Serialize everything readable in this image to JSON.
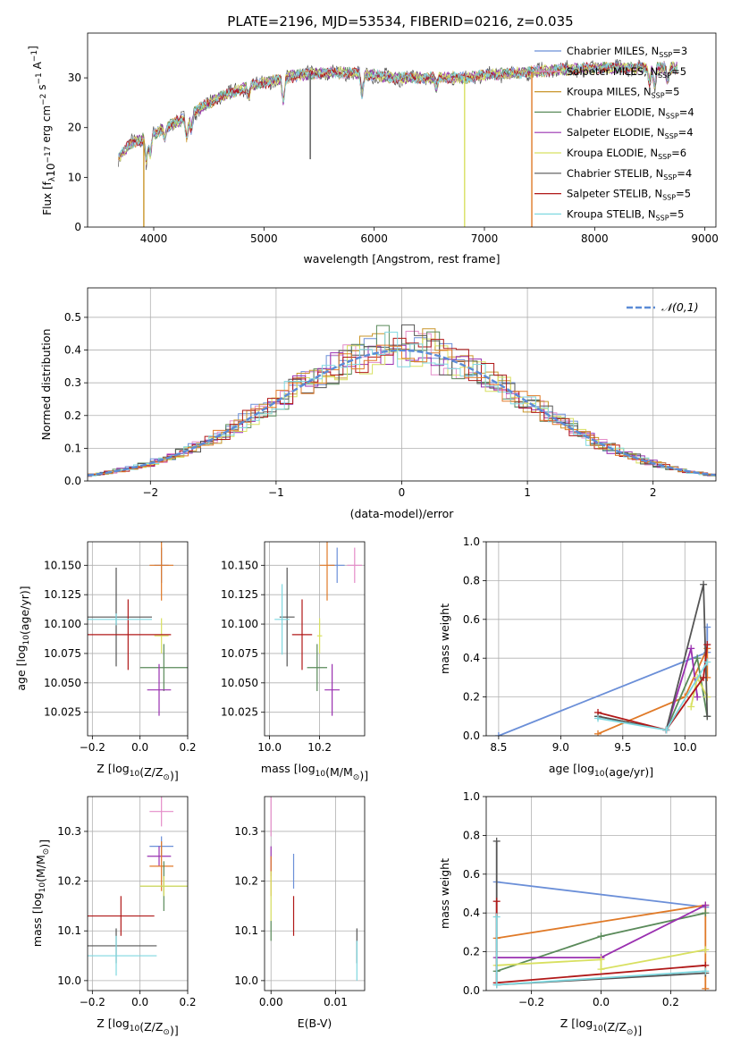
{
  "title": "PLATE=2196, MJD=53534, FIBERID=0216, z=0.035",
  "colors": {
    "Chabrier MILES": "#6b8fd8",
    "Salpeter MILES": "#e48cc8",
    "Kroupa MILES": "#c9962a",
    "Chabrier ELODIE": "#5a8a5a",
    "Salpeter ELODIE": "#9a30b0",
    "Kroupa ELODIE": "#d8e060",
    "Chabrier STELIB": "#555555",
    "Salpeter STELIB": "#b01818",
    "Kroupa STELIB": "#7fd8e0",
    "orange": "#e07a28",
    "normal": "#5b8bd6"
  },
  "chart_data": [
    {
      "type": "line",
      "id": "spectrum",
      "xlabel": "wavelength [Angstrom, rest frame]",
      "ylabel": "Flux [f",
      "ylabel_parts": [
        "λ",
        "10",
        "−17",
        " erg cm",
        "−2",
        " s",
        "−1",
        " A",
        "−1",
        "]"
      ],
      "xlim": [
        3400,
        9100
      ],
      "ylim": [
        0,
        39
      ],
      "xticks": [
        4000,
        5000,
        6000,
        7000,
        8000,
        9000
      ],
      "yticks": [
        0,
        10,
        20,
        30
      ],
      "wavelength_range": [
        3680,
        8750
      ],
      "legend": [
        {
          "name": "Chabrier MILES",
          "sub": "SSP",
          "n": "=3"
        },
        {
          "name": "Salpeter MILES",
          "sub": "SSP",
          "n": "=5"
        },
        {
          "name": "Kroupa MILES",
          "sub": "SSP",
          "n": "=5"
        },
        {
          "name": "Chabrier ELODIE",
          "sub": "SSP",
          "n": "=4"
        },
        {
          "name": "Salpeter ELODIE",
          "sub": "SSP",
          "n": "=4"
        },
        {
          "name": "Kroupa ELODIE",
          "sub": "SSP",
          "n": "=6"
        },
        {
          "name": "Chabrier STELIB",
          "sub": "SSP",
          "n": "=4"
        },
        {
          "name": "Salpeter STELIB",
          "sub": "SSP",
          "n": "=5"
        },
        {
          "name": "Kroupa STELIB",
          "sub": "SSP",
          "n": "=5"
        }
      ],
      "continuum": [
        [
          3680,
          14
        ],
        [
          3800,
          17
        ],
        [
          3950,
          18
        ],
        [
          4100,
          20
        ],
        [
          4300,
          22
        ],
        [
          4500,
          25
        ],
        [
          4700,
          27
        ],
        [
          4900,
          28.5
        ],
        [
          5100,
          29.5
        ],
        [
          5300,
          30.5
        ],
        [
          5500,
          31
        ],
        [
          5800,
          31
        ],
        [
          6000,
          30.5
        ],
        [
          6200,
          30
        ],
        [
          6500,
          30
        ],
        [
          6800,
          30
        ],
        [
          7000,
          30.5
        ],
        [
          7300,
          31
        ],
        [
          7600,
          31.5
        ],
        [
          8000,
          32
        ],
        [
          8300,
          32
        ],
        [
          8750,
          32
        ]
      ],
      "absorption_lines": [
        [
          3933,
          -5
        ],
        [
          3968,
          -4
        ],
        [
          4101,
          -2
        ],
        [
          4300,
          -4
        ],
        [
          4340,
          -3
        ],
        [
          4861,
          -2
        ],
        [
          5175,
          -5
        ],
        [
          5890,
          -5
        ],
        [
          6563,
          -2
        ],
        [
          8498,
          -3
        ],
        [
          8542,
          -4
        ],
        [
          8662,
          -3
        ]
      ],
      "dropouts": [
        [
          3910,
          0
        ],
        [
          5420,
          14
        ],
        [
          6820,
          0
        ],
        [
          7430,
          0
        ]
      ]
    },
    {
      "type": "histogram",
      "id": "residuals",
      "xlabel": "(data-model)/error",
      "ylabel": "Normed distribution",
      "xlim": [
        -2.5,
        2.5
      ],
      "ylim": [
        0,
        0.59
      ],
      "xticks": [
        -2,
        -1,
        0,
        1,
        2
      ],
      "yticks": [
        0.0,
        0.1,
        0.2,
        0.3,
        0.4,
        0.5
      ],
      "bin_width": 0.1,
      "legend": "𝒩(0,1)",
      "normal_mean": 0,
      "normal_sigma": 1
    },
    {
      "type": "scatter",
      "id": "age-vs-Z",
      "xlabel": "Z [log",
      "xlabel_parts": [
        "10",
        "(Z/Z",
        "⊙",
        ")]"
      ],
      "ylabel": "age  [log",
      "ylabel_parts": [
        "10",
        "(age/yr)]"
      ],
      "xlim": [
        -0.22,
        0.2
      ],
      "ylim": [
        10.005,
        10.17
      ],
      "xticks": [
        -0.2,
        0.0,
        0.2
      ],
      "yticks": [
        10.025,
        10.05,
        10.075,
        10.1,
        10.125,
        10.15
      ],
      "points": [
        {
          "c": "Chabrier MILES",
          "x": 0.09,
          "y": 10.15,
          "xe": 0.03,
          "ye": 0.015
        },
        {
          "c": "orange",
          "x": 0.09,
          "y": 10.15,
          "xe": 0.05,
          "ye": 0.03
        },
        {
          "c": "Kroupa ELODIE",
          "x": 0.09,
          "y": 10.09,
          "xe": 0.03,
          "ye": 0.015
        },
        {
          "c": "Chabrier ELODIE",
          "x": 0.1,
          "y": 10.063,
          "xe": 0.1,
          "ye": 0.02
        },
        {
          "c": "Salpeter ELODIE",
          "x": 0.08,
          "y": 10.044,
          "xe": 0.05,
          "ye": 0.022
        },
        {
          "c": "Chabrier STELIB",
          "x": -0.1,
          "y": 10.106,
          "xe": 0.15,
          "ye": 0.042
        },
        {
          "c": "Salpeter STELIB",
          "x": -0.05,
          "y": 10.091,
          "xe": 0.18,
          "ye": 0.03
        },
        {
          "c": "Kroupa STELIB",
          "x": -0.1,
          "y": 10.104,
          "xe": 0.15,
          "ye": 0.005
        }
      ]
    },
    {
      "type": "scatter",
      "id": "age-vs-mass",
      "xlabel": "mass [log",
      "xlabel_parts": [
        "10",
        "(M/M",
        "⊙",
        ")]"
      ],
      "xlim": [
        9.98,
        10.38
      ],
      "ylim": [
        10.005,
        10.17
      ],
      "xticks": [
        10.0,
        10.2
      ],
      "yticks": [
        10.025,
        10.05,
        10.075,
        10.1,
        10.125,
        10.15
      ],
      "points": [
        {
          "c": "Chabrier MILES",
          "x": 10.27,
          "y": 10.15,
          "xe": 0.03,
          "ye": 0.015
        },
        {
          "c": "Salpeter MILES",
          "x": 10.34,
          "y": 10.15,
          "xe": 0.03,
          "ye": 0.015
        },
        {
          "c": "orange",
          "x": 10.23,
          "y": 10.15,
          "xe": 0.03,
          "ye": 0.03
        },
        {
          "c": "Kroupa ELODIE",
          "x": 10.2,
          "y": 10.09,
          "xe": 0.01,
          "ye": 0.015
        },
        {
          "c": "Chabrier ELODIE",
          "x": 10.19,
          "y": 10.063,
          "xe": 0.04,
          "ye": 0.02
        },
        {
          "c": "Salpeter ELODIE",
          "x": 10.25,
          "y": 10.044,
          "xe": 0.03,
          "ye": 0.022
        },
        {
          "c": "Chabrier STELIB",
          "x": 10.07,
          "y": 10.106,
          "xe": 0.03,
          "ye": 0.042
        },
        {
          "c": "Salpeter STELIB",
          "x": 10.13,
          "y": 10.091,
          "xe": 0.04,
          "ye": 0.03
        },
        {
          "c": "Kroupa STELIB",
          "x": 10.05,
          "y": 10.104,
          "xe": 0.03,
          "ye": 0.03
        }
      ]
    },
    {
      "type": "line",
      "id": "mass-weight-vs-age",
      "xlabel": "age  [log",
      "xlabel_parts": [
        "10",
        "(age/yr)]"
      ],
      "ylabel": "mass weight",
      "xlim": [
        8.4,
        10.25
      ],
      "ylim": [
        0,
        1
      ],
      "xticks": [
        8.5,
        9.0,
        9.5,
        10.0
      ],
      "yticks": [
        0.0,
        0.2,
        0.4,
        0.6,
        0.8,
        1.0
      ],
      "series": [
        {
          "c": "Chabrier MILES",
          "x": [
            8.5,
            10.18,
            10.18
          ],
          "y": [
            0.0,
            0.43,
            0.56
          ]
        },
        {
          "c": "orange",
          "x": [
            9.3,
            10.0,
            10.18,
            10.18
          ],
          "y": [
            0.01,
            0.2,
            0.45,
            0.3
          ]
        },
        {
          "c": "Chabrier ELODIE",
          "x": [
            9.3,
            9.85,
            10.1,
            10.18
          ],
          "y": [
            0.1,
            0.03,
            0.4,
            0.1
          ]
        },
        {
          "c": "Salpeter ELODIE",
          "x": [
            9.85,
            10.05,
            10.1
          ],
          "y": [
            0.03,
            0.45,
            0.2
          ]
        },
        {
          "c": "Kroupa ELODIE",
          "x": [
            10.05,
            10.1,
            10.18
          ],
          "y": [
            0.15,
            0.3,
            0.2
          ]
        },
        {
          "c": "Chabrier STELIB",
          "x": [
            9.3,
            9.85,
            10.15,
            10.18
          ],
          "y": [
            0.1,
            0.03,
            0.78,
            0.1
          ]
        },
        {
          "c": "Salpeter STELIB",
          "x": [
            9.3,
            9.85,
            10.15,
            10.18
          ],
          "y": [
            0.12,
            0.03,
            0.3,
            0.47
          ]
        },
        {
          "c": "Kroupa STELIB",
          "x": [
            9.3,
            9.85,
            10.18
          ],
          "y": [
            0.09,
            0.03,
            0.38
          ]
        }
      ]
    },
    {
      "type": "scatter",
      "id": "mass-vs-Z",
      "xlabel": "Z [log",
      "xlabel_parts": [
        "10",
        "(Z/Z",
        "⊙",
        ")]"
      ],
      "ylabel": "mass [log",
      "ylabel_parts": [
        "10",
        "(M/M",
        "⊙",
        ")]"
      ],
      "xlim": [
        -0.22,
        0.2
      ],
      "ylim": [
        9.98,
        10.37
      ],
      "xticks": [
        -0.2,
        0.0,
        0.2
      ],
      "yticks": [
        10.0,
        10.1,
        10.2,
        10.3
      ],
      "points": [
        {
          "c": "Salpeter MILES",
          "x": 0.09,
          "y": 10.34,
          "xe": 0.05,
          "ye": 0.03
        },
        {
          "c": "Chabrier MILES",
          "x": 0.09,
          "y": 10.27,
          "xe": 0.05,
          "ye": 0.02
        },
        {
          "c": "Salpeter ELODIE",
          "x": 0.08,
          "y": 10.25,
          "xe": 0.05,
          "ye": 0.02
        },
        {
          "c": "orange",
          "x": 0.09,
          "y": 10.23,
          "xe": 0.05,
          "ye": 0.05
        },
        {
          "c": "Chabrier ELODIE",
          "x": 0.1,
          "y": 10.19,
          "xe": 0.1,
          "ye": 0.05
        },
        {
          "c": "Kroupa ELODIE",
          "x": 0.1,
          "y": 10.19,
          "xe": 0.1,
          "ye": 0.02
        },
        {
          "c": "Salpeter STELIB",
          "x": -0.08,
          "y": 10.13,
          "xe": 0.14,
          "ye": 0.04
        },
        {
          "c": "Chabrier STELIB",
          "x": -0.1,
          "y": 10.07,
          "xe": 0.17,
          "ye": 0.035
        },
        {
          "c": "Kroupa STELIB",
          "x": -0.1,
          "y": 10.05,
          "xe": 0.17,
          "ye": 0.04
        }
      ]
    },
    {
      "type": "scatter",
      "id": "mass-vs-ebv",
      "xlabel": "E(B-V)",
      "xlim": [
        -0.001,
        0.0145
      ],
      "ylim": [
        9.98,
        10.37
      ],
      "xticks": [
        0.0,
        0.01
      ],
      "yticks": [
        10.0,
        10.1,
        10.2,
        10.3
      ],
      "points": [
        {
          "c": "Salpeter MILES",
          "x": 0.0,
          "y": 10.33,
          "xe": 0,
          "ye": 0.04
        },
        {
          "c": "Salpeter ELODIE",
          "x": 0.0,
          "y": 10.24,
          "xe": 0,
          "ye": 0.03
        },
        {
          "c": "orange",
          "x": 0.0,
          "y": 10.21,
          "xe": 0,
          "ye": 0.04
        },
        {
          "c": "Kroupa ELODIE",
          "x": 0.0,
          "y": 10.17,
          "xe": 0,
          "ye": 0.05
        },
        {
          "c": "Chabrier ELODIE",
          "x": 0.0,
          "y": 10.1,
          "xe": 0,
          "ye": 0.02
        },
        {
          "c": "Chabrier MILES",
          "x": 0.0035,
          "y": 10.22,
          "xe": 0,
          "ye": 0.035
        },
        {
          "c": "Salpeter STELIB",
          "x": 0.0035,
          "y": 10.13,
          "xe": 0,
          "ye": 0.04
        },
        {
          "c": "Chabrier STELIB",
          "x": 0.0133,
          "y": 10.07,
          "xe": 0,
          "ye": 0.035
        },
        {
          "c": "Kroupa STELIB",
          "x": 0.0133,
          "y": 10.04,
          "xe": 0,
          "ye": 0.04
        }
      ]
    },
    {
      "type": "line",
      "id": "mass-weight-vs-Z",
      "xlabel": "Z [log",
      "xlabel_parts": [
        "10",
        "(Z/Z",
        "⊙",
        ")]"
      ],
      "ylabel": "mass weight",
      "xlim": [
        -0.33,
        0.33
      ],
      "ylim": [
        0,
        1
      ],
      "xticks": [
        -0.2,
        0.0,
        0.2
      ],
      "yticks": [
        0.0,
        0.2,
        0.4,
        0.6,
        0.8,
        1.0
      ],
      "series": [
        {
          "c": "Chabrier MILES",
          "x": [
            -0.3,
            0.3
          ],
          "y": [
            0.56,
            0.43
          ]
        },
        {
          "c": "orange",
          "x": [
            -0.3,
            0.3,
            0.3
          ],
          "y": [
            0.27,
            0.44,
            0.01
          ]
        },
        {
          "c": "Chabrier ELODIE",
          "x": [
            -0.3,
            0.0,
            0.3
          ],
          "y": [
            0.1,
            0.28,
            0.4
          ]
        },
        {
          "c": "Salpeter ELODIE",
          "x": [
            -0.3,
            0.0,
            0.3
          ],
          "y": [
            0.17,
            0.17,
            0.44
          ]
        },
        {
          "c": "Kroupa ELODIE",
          "x": [
            -0.3,
            0.0,
            0.0,
            0.3
          ],
          "y": [
            0.13,
            0.16,
            0.11,
            0.21
          ]
        },
        {
          "c": "Chabrier STELIB",
          "x": [
            -0.3,
            -0.3,
            0.3
          ],
          "y": [
            0.77,
            0.03,
            0.09
          ]
        },
        {
          "c": "Salpeter STELIB",
          "x": [
            -0.3,
            -0.3,
            0.3
          ],
          "y": [
            0.46,
            0.04,
            0.13
          ]
        },
        {
          "c": "Kroupa STELIB",
          "x": [
            -0.3,
            -0.3,
            0.3
          ],
          "y": [
            0.38,
            0.03,
            0.1
          ]
        }
      ]
    }
  ]
}
